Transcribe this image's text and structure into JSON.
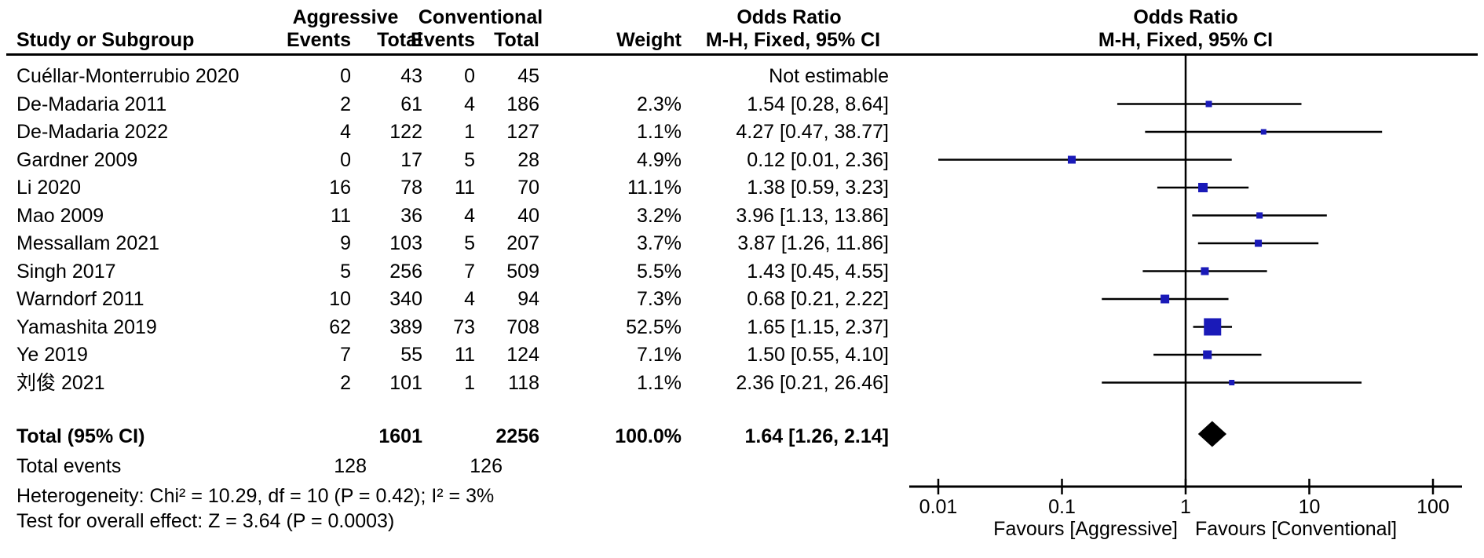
{
  "chart_data": {
    "type": "forest",
    "scale": "log10",
    "title_left_column": "Odds Ratio",
    "subtitle_left_column": "M-H, Fixed, 95% CI",
    "plot_title": "Odds Ratio",
    "plot_subtitle": "M-H, Fixed, 95% CI",
    "headers": {
      "study": "Study or Subgroup",
      "group1": "Aggressive",
      "group2": "Conventional",
      "events": "Events",
      "total": "Total",
      "weight": "Weight",
      "or_header": "Odds Ratio",
      "or_subheader": "M-H, Fixed, 95% CI"
    },
    "x_ticks": [
      0.01,
      0.1,
      1,
      10,
      100
    ],
    "x_tick_labels": [
      "0.01",
      "0.1",
      "1",
      "10",
      "100"
    ],
    "null_line": 1,
    "axis_range": [
      0.01,
      100
    ],
    "favours_left": "Favours [Aggressive]",
    "favours_right": "Favours [Conventional]",
    "studies": [
      {
        "name": "Cuéllar-Monterrubio 2020",
        "events_aggressive": 0,
        "total_aggressive": 43,
        "events_conventional": 0,
        "total_conventional": 45,
        "weight": "",
        "or_text": "Not estimable",
        "or": null,
        "ci_low": null,
        "ci_high": null
      },
      {
        "name": "De-Madaria 2011",
        "events_aggressive": 2,
        "total_aggressive": 61,
        "events_conventional": 4,
        "total_conventional": 186,
        "weight": "2.3%",
        "or_text": "1.54 [0.28, 8.64]",
        "or": 1.54,
        "ci_low": 0.28,
        "ci_high": 8.64
      },
      {
        "name": "De-Madaria 2022",
        "events_aggressive": 4,
        "total_aggressive": 122,
        "events_conventional": 1,
        "total_conventional": 127,
        "weight": "1.1%",
        "or_text": "4.27 [0.47, 38.77]",
        "or": 4.27,
        "ci_low": 0.47,
        "ci_high": 38.77
      },
      {
        "name": "Gardner 2009",
        "events_aggressive": 0,
        "total_aggressive": 17,
        "events_conventional": 5,
        "total_conventional": 28,
        "weight": "4.9%",
        "or_text": "0.12 [0.01, 2.36]",
        "or": 0.12,
        "ci_low": 0.01,
        "ci_high": 2.36
      },
      {
        "name": "Li 2020",
        "events_aggressive": 16,
        "total_aggressive": 78,
        "events_conventional": 11,
        "total_conventional": 70,
        "weight": "11.1%",
        "or_text": "1.38 [0.59, 3.23]",
        "or": 1.38,
        "ci_low": 0.59,
        "ci_high": 3.23
      },
      {
        "name": "Mao 2009",
        "events_aggressive": 11,
        "total_aggressive": 36,
        "events_conventional": 4,
        "total_conventional": 40,
        "weight": "3.2%",
        "or_text": "3.96 [1.13, 13.86]",
        "or": 3.96,
        "ci_low": 1.13,
        "ci_high": 13.86
      },
      {
        "name": "Messallam 2021",
        "events_aggressive": 9,
        "total_aggressive": 103,
        "events_conventional": 5,
        "total_conventional": 207,
        "weight": "3.7%",
        "or_text": "3.87 [1.26, 11.86]",
        "or": 3.87,
        "ci_low": 1.26,
        "ci_high": 11.86
      },
      {
        "name": "Singh 2017",
        "events_aggressive": 5,
        "total_aggressive": 256,
        "events_conventional": 7,
        "total_conventional": 509,
        "weight": "5.5%",
        "or_text": "1.43 [0.45, 4.55]",
        "or": 1.43,
        "ci_low": 0.45,
        "ci_high": 4.55
      },
      {
        "name": "Warndorf 2011",
        "events_aggressive": 10,
        "total_aggressive": 340,
        "events_conventional": 4,
        "total_conventional": 94,
        "weight": "7.3%",
        "or_text": "0.68 [0.21, 2.22]",
        "or": 0.68,
        "ci_low": 0.21,
        "ci_high": 2.22
      },
      {
        "name": "Yamashita 2019",
        "events_aggressive": 62,
        "total_aggressive": 389,
        "events_conventional": 73,
        "total_conventional": 708,
        "weight": "52.5%",
        "or_text": "1.65 [1.15, 2.37]",
        "or": 1.65,
        "ci_low": 1.15,
        "ci_high": 2.37
      },
      {
        "name": "Ye 2019",
        "events_aggressive": 7,
        "total_aggressive": 55,
        "events_conventional": 11,
        "total_conventional": 124,
        "weight": "7.1%",
        "or_text": "1.50 [0.55, 4.10]",
        "or": 1.5,
        "ci_low": 0.55,
        "ci_high": 4.1
      },
      {
        "name": "刘俊 2021",
        "events_aggressive": 2,
        "total_aggressive": 101,
        "events_conventional": 1,
        "total_conventional": 118,
        "weight": "1.1%",
        "or_text": "2.36 [0.21, 26.46]",
        "or": 2.36,
        "ci_low": 0.21,
        "ci_high": 26.46
      }
    ],
    "total": {
      "label": "Total (95% CI)",
      "total_aggressive": "1601",
      "total_conventional": "2256",
      "weight": "100.0%",
      "or_text": "1.64 [1.26, 2.14]",
      "or": 1.64,
      "ci_low": 1.26,
      "ci_high": 2.14
    },
    "total_events": {
      "label": "Total events",
      "aggressive": "128",
      "conventional": "126"
    },
    "heterogeneity": "Heterogeneity: Chi² = 10.29, df = 10 (P = 0.42); I² = 3%",
    "overall_effect": "Test for overall effect: Z = 3.64 (P = 0.0003)",
    "colors": {
      "marker": "#1a1ab8",
      "diamond": "#000000",
      "line": "#000000",
      "text": "#000000"
    }
  }
}
